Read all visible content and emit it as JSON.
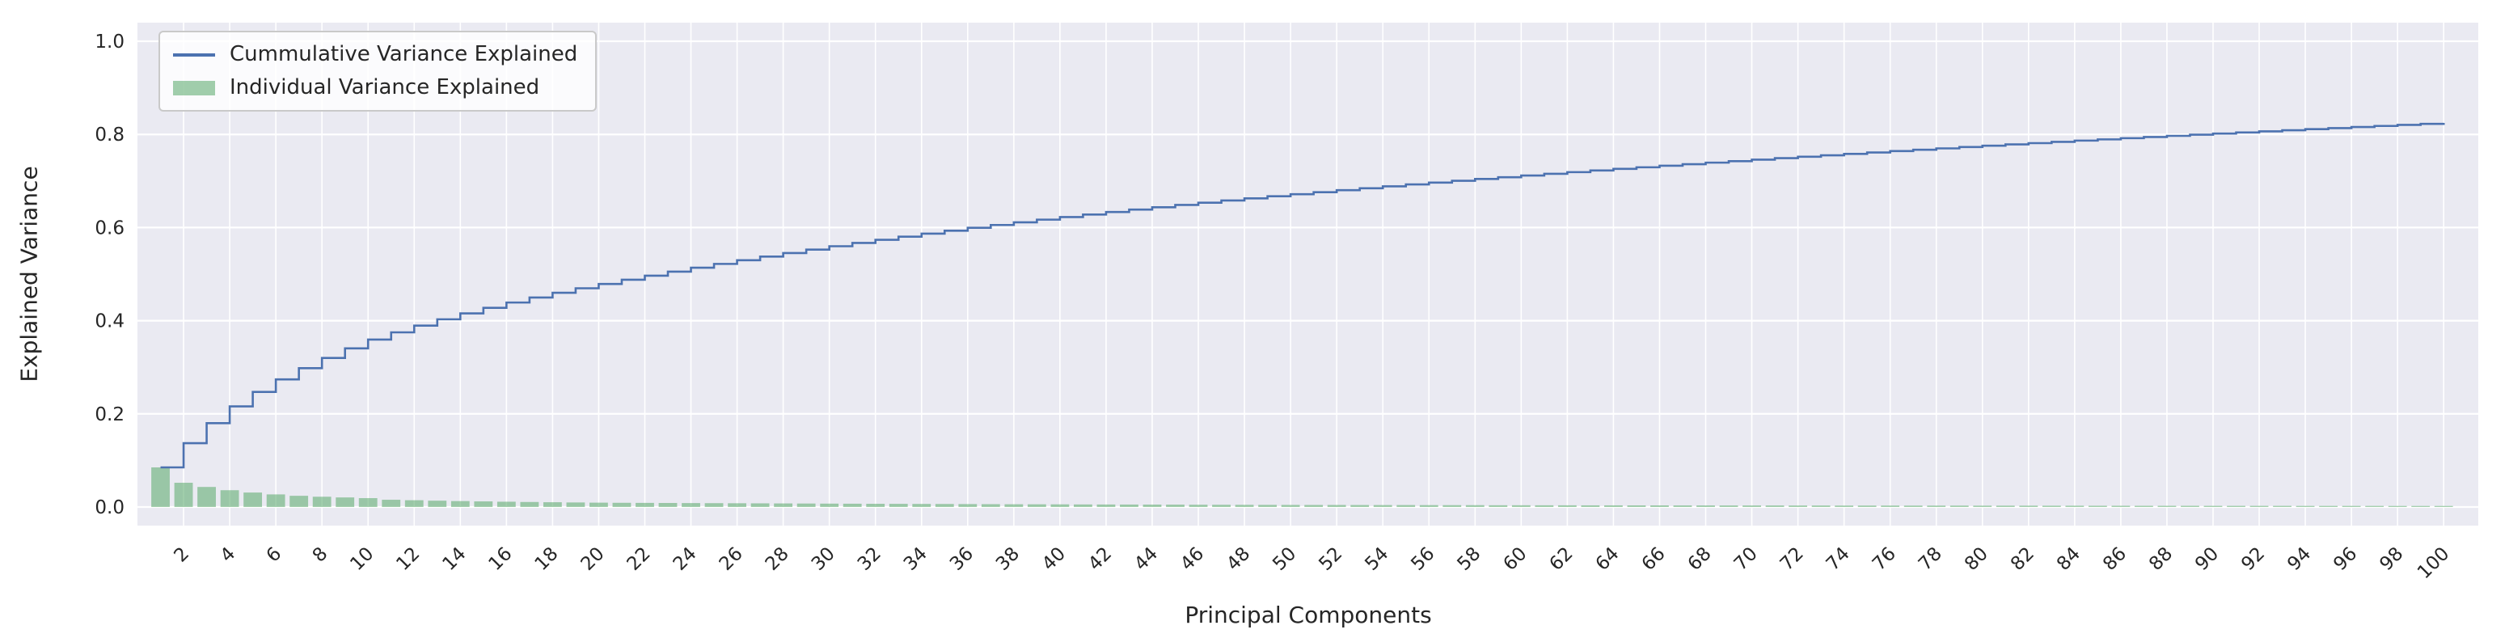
{
  "figure": {
    "background": "#ffffff",
    "axes_background": "#eaeaf2",
    "grid_color": "#ffffff",
    "text_color": "#262626"
  },
  "chart_data": {
    "type": "line+bar",
    "title": "",
    "xlabel": "Principal Components",
    "ylabel": "Explained Variance",
    "x_start": 1,
    "x_end": 100,
    "xlim": [
      0,
      101.5
    ],
    "ylim": [
      -0.04,
      1.04
    ],
    "grid": true,
    "legend_position": "upper left",
    "xtick_labels": [
      "2",
      "4",
      "6",
      "8",
      "10",
      "12",
      "14",
      "16",
      "18",
      "20",
      "22",
      "24",
      "26",
      "28",
      "30",
      "32",
      "34",
      "36",
      "38",
      "40",
      "42",
      "44",
      "46",
      "48",
      "50",
      "52",
      "54",
      "56",
      "58",
      "60",
      "62",
      "64",
      "66",
      "68",
      "70",
      "72",
      "74",
      "76",
      "78",
      "80",
      "82",
      "84",
      "86",
      "88",
      "90",
      "92",
      "94",
      "96",
      "98",
      "100"
    ],
    "ytick_labels": [
      "0.0",
      "0.2",
      "0.4",
      "0.6",
      "0.8",
      "1.0"
    ],
    "series": [
      {
        "name": "Cummulative Variance Explained",
        "kind": "step-line",
        "color": "#4c72b0",
        "values": [
          0.085,
          0.137,
          0.18,
          0.216,
          0.247,
          0.274,
          0.298,
          0.32,
          0.3405,
          0.3595,
          0.375,
          0.3895,
          0.403,
          0.4157,
          0.4277,
          0.439,
          0.4497,
          0.4599,
          0.4696,
          0.4789,
          0.4879,
          0.4967,
          0.5053,
          0.5137,
          0.5219,
          0.5299,
          0.5377,
          0.5453,
          0.5527,
          0.5599,
          0.5669,
          0.5737,
          0.5804,
          0.5869,
          0.5933,
          0.5995,
          0.6055,
          0.6113,
          0.617,
          0.6226,
          0.628,
          0.6333,
          0.6385,
          0.6436,
          0.6486,
          0.6534,
          0.6581,
          0.6627,
          0.6672,
          0.6716,
          0.6759,
          0.6802,
          0.6844,
          0.6885,
          0.6926,
          0.6966,
          0.7005,
          0.7044,
          0.7081,
          0.7118,
          0.7154,
          0.719,
          0.7225,
          0.726,
          0.7294,
          0.7328,
          0.7361,
          0.7394,
          0.7426,
          0.7458,
          0.749,
          0.7521,
          0.7552,
          0.7582,
          0.7612,
          0.7642,
          0.7671,
          0.77,
          0.7729,
          0.7757,
          0.7785,
          0.7813,
          0.784,
          0.7867,
          0.7893,
          0.7919,
          0.7944,
          0.7969,
          0.7994,
          0.8018,
          0.8042,
          0.8066,
          0.809,
          0.8113,
          0.8136,
          0.8159,
          0.8182,
          0.8204,
          0.8226,
          0.8248
        ]
      },
      {
        "name": "Individual Variance Explained",
        "kind": "bar",
        "color": "#55a868",
        "opacity": 0.55,
        "values": [
          0.085,
          0.052,
          0.043,
          0.036,
          0.031,
          0.027,
          0.024,
          0.022,
          0.0205,
          0.019,
          0.0155,
          0.0145,
          0.0135,
          0.0127,
          0.012,
          0.0113,
          0.0107,
          0.0102,
          0.0097,
          0.0093,
          0.009,
          0.0088,
          0.0086,
          0.0084,
          0.0082,
          0.008,
          0.0078,
          0.0076,
          0.0074,
          0.0072,
          0.007,
          0.0068,
          0.0067,
          0.0065,
          0.0064,
          0.0062,
          0.006,
          0.0058,
          0.0057,
          0.0056,
          0.0054,
          0.0053,
          0.0052,
          0.0051,
          0.005,
          0.0048,
          0.0047,
          0.0046,
          0.0045,
          0.0044,
          0.0043,
          0.0043,
          0.0042,
          0.0041,
          0.0041,
          0.004,
          0.0039,
          0.0039,
          0.0037,
          0.0037,
          0.0036,
          0.0036,
          0.0035,
          0.0035,
          0.0034,
          0.0034,
          0.0033,
          0.0033,
          0.0032,
          0.0032,
          0.0032,
          0.0031,
          0.0031,
          0.003,
          0.003,
          0.003,
          0.0029,
          0.0029,
          0.0029,
          0.0028,
          0.0028,
          0.0028,
          0.0027,
          0.0027,
          0.0026,
          0.0026,
          0.0025,
          0.0025,
          0.0025,
          0.0024,
          0.0024,
          0.0024,
          0.0024,
          0.0023,
          0.0023,
          0.0023,
          0.0023,
          0.0022,
          0.0022,
          0.0022
        ]
      }
    ]
  }
}
